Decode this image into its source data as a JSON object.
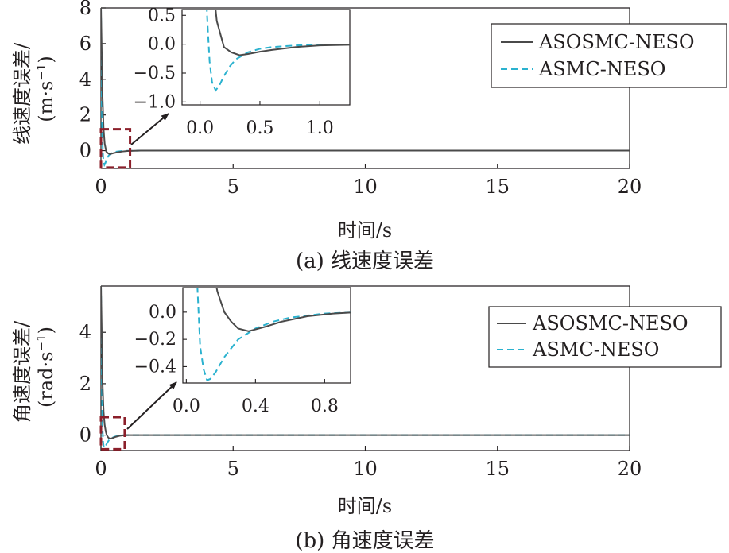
{
  "colors": {
    "series1": "#4a4a4a",
    "series2": "#2bb2cf",
    "box": "#8b1f2a",
    "axis": "#231f20"
  },
  "chart_data": [
    {
      "type": "line",
      "caption": "(a) 线速度误差",
      "xlabel": "时间/s",
      "ylabel": "线速度误差/",
      "yunit_prefix": "(m·s",
      "yunit_exp": "−1",
      "yunit_suffix": ")",
      "xlim": [
        0,
        20
      ],
      "ylim": [
        -1.0,
        8.0
      ],
      "xticks": [
        0,
        5,
        10,
        15,
        20
      ],
      "xtick_labels": [
        "0",
        "5",
        "10",
        "15",
        "20"
      ],
      "yticks": [
        0,
        2,
        4,
        6,
        8
      ],
      "ytick_labels": [
        "0",
        "2",
        "4",
        "6",
        "8"
      ],
      "legend": {
        "position": "top-right",
        "entries": [
          "ASOSMC-NESO",
          "ASMC-NESO"
        ]
      },
      "series": [
        {
          "name": "ASOSMC-NESO",
          "style": "solid",
          "x": [
            0,
            0.03,
            0.06,
            0.1,
            0.14,
            0.2,
            0.26,
            0.33,
            0.4,
            0.5,
            0.6,
            0.8,
            1.0,
            1.5,
            2,
            5,
            10,
            15,
            20
          ],
          "y": [
            8.0,
            5.5,
            3.0,
            1.2,
            0.4,
            -0.05,
            -0.14,
            -0.19,
            -0.17,
            -0.13,
            -0.1,
            -0.05,
            -0.02,
            0,
            0,
            0,
            0,
            0,
            0
          ]
        },
        {
          "name": "ASMC-NESO",
          "style": "dashed",
          "x": [
            0,
            0.02,
            0.04,
            0.06,
            0.08,
            0.1,
            0.13,
            0.16,
            0.2,
            0.25,
            0.3,
            0.4,
            0.5,
            0.6,
            0.8,
            1.0,
            1.5,
            2,
            5,
            10,
            15,
            20
          ],
          "y": [
            8.0,
            4.0,
            1.5,
            0.45,
            -0.3,
            -0.65,
            -0.8,
            -0.72,
            -0.55,
            -0.38,
            -0.26,
            -0.14,
            -0.08,
            -0.05,
            -0.02,
            -0.01,
            0,
            0,
            0,
            0,
            0,
            0
          ]
        }
      ],
      "highlight_box": {
        "x": [
          0,
          1.1
        ],
        "y": [
          -0.95,
          1.2
        ]
      },
      "inset": {
        "xlim": [
          -0.15,
          1.25
        ],
        "ylim": [
          -1.05,
          0.6
        ],
        "xticks": [
          0,
          0.5,
          1.0
        ],
        "xtick_labels": [
          "0.0",
          "0.5",
          "1.0"
        ],
        "yticks": [
          0.5,
          0.0,
          -0.5,
          -1.0
        ],
        "ytick_labels": [
          "0.5",
          "0.0",
          "−0.5",
          "−1.0"
        ]
      }
    },
    {
      "type": "line",
      "caption": "(b) 角速度误差",
      "xlabel": "时间/s",
      "ylabel": "角速度误差/",
      "yunit_prefix": "(rad·s",
      "yunit_exp": "−1",
      "yunit_suffix": ")",
      "xlim": [
        0,
        20
      ],
      "ylim": [
        -0.6,
        5.8
      ],
      "xticks": [
        0,
        5,
        10,
        15,
        20
      ],
      "xtick_labels": [
        "0",
        "5",
        "10",
        "15",
        "20"
      ],
      "yticks": [
        0,
        2,
        4
      ],
      "ytick_labels": [
        "0",
        "2",
        "4"
      ],
      "legend": {
        "position": "top-right",
        "entries": [
          "ASOSMC-NESO",
          "ASMC-NESO"
        ]
      },
      "series": [
        {
          "name": "ASOSMC-NESO",
          "style": "solid",
          "x": [
            0,
            0.03,
            0.06,
            0.1,
            0.14,
            0.18,
            0.22,
            0.26,
            0.3,
            0.36,
            0.45,
            0.55,
            0.7,
            0.85,
            1.0,
            1.5,
            2,
            5,
            10,
            15,
            20
          ],
          "y": [
            5.8,
            4.0,
            2.0,
            0.9,
            0.4,
            0.15,
            0.0,
            -0.07,
            -0.12,
            -0.14,
            -0.11,
            -0.07,
            -0.03,
            -0.01,
            0,
            0,
            0,
            0,
            0,
            0,
            0
          ]
        },
        {
          "name": "ASMC-NESO",
          "style": "dashed",
          "x": [
            0,
            0.02,
            0.04,
            0.06,
            0.08,
            0.1,
            0.12,
            0.14,
            0.17,
            0.22,
            0.3,
            0.4,
            0.5,
            0.6,
            0.8,
            1.0,
            1.5,
            2,
            5,
            10,
            15,
            20
          ],
          "y": [
            5.8,
            3.5,
            1.5,
            0.3,
            -0.25,
            -0.42,
            -0.5,
            -0.49,
            -0.44,
            -0.33,
            -0.2,
            -0.12,
            -0.07,
            -0.04,
            -0.01,
            0,
            0,
            0,
            0,
            0,
            0,
            0
          ]
        }
      ],
      "highlight_box": {
        "x": [
          0,
          0.9
        ],
        "y": [
          -0.55,
          0.7
        ]
      },
      "inset": {
        "xlim": [
          -0.02,
          0.95
        ],
        "ylim": [
          -0.52,
          0.18
        ],
        "xticks": [
          0.0,
          0.4,
          0.8
        ],
        "xtick_labels": [
          "0.0",
          "0.4",
          "0.8"
        ],
        "yticks": [
          0.0,
          -0.2,
          -0.4
        ],
        "ytick_labels": [
          "0.0",
          "−0.2",
          "−0.4"
        ]
      }
    }
  ]
}
